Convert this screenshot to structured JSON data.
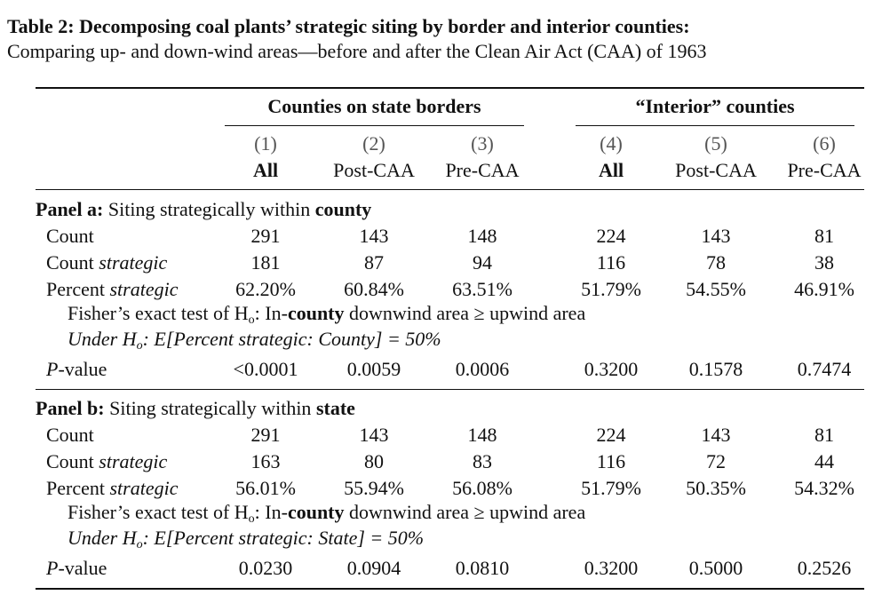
{
  "title": "Table 2: Decomposing coal plants’ strategic siting by border and interior counties:",
  "subtitle": "Comparing up- and down-wind areas—before and after the Clean Air Act (CAA) of 1963",
  "table": {
    "groups": [
      "Counties on state borders",
      "“Interior” counties"
    ],
    "column_numbers": [
      "(1)",
      "(2)",
      "(3)",
      "(4)",
      "(5)",
      "(6)"
    ],
    "column_labels": [
      "All",
      "Post-CAA",
      "Pre-CAA",
      "All",
      "Post-CAA",
      "Pre-CAA"
    ],
    "panels": [
      {
        "heading": [
          "Panel a:",
          " Siting strategically within ",
          "county"
        ],
        "rows": [
          {
            "label": [
              "Count"
            ],
            "values": [
              "291",
              "143",
              "148",
              "224",
              "143",
              "81"
            ]
          },
          {
            "label": [
              "Count ",
              "strategic"
            ],
            "values": [
              "181",
              "87",
              "94",
              "116",
              "78",
              "38"
            ]
          },
          {
            "label": [
              "Percent ",
              "strategic"
            ],
            "values": [
              "62.20%",
              "60.84%",
              "63.51%",
              "51.79%",
              "54.55%",
              "46.91%"
            ]
          }
        ],
        "test_note": [
          "Fisher’s exact test of H",
          "o",
          ": In-",
          "county",
          " downwind area ≥ upwind area"
        ],
        "hypothesis_note": [
          "Under H",
          "o",
          ": E[Percent strategic: County] = 50%"
        ],
        "p_row": {
          "label": [
            "P",
            "-value"
          ],
          "values": [
            "<0.0001",
            "0.0059",
            "0.0006",
            "0.3200",
            "0.1578",
            "0.7474"
          ]
        }
      },
      {
        "heading": [
          "Panel b:",
          " Siting strategically within ",
          "state"
        ],
        "rows": [
          {
            "label": [
              "Count"
            ],
            "values": [
              "291",
              "143",
              "148",
              "224",
              "143",
              "81"
            ]
          },
          {
            "label": [
              "Count ",
              "strategic"
            ],
            "values": [
              "163",
              "80",
              "83",
              "116",
              "72",
              "44"
            ]
          },
          {
            "label": [
              "Percent ",
              "strategic"
            ],
            "values": [
              "56.01%",
              "55.94%",
              "56.08%",
              "51.79%",
              "50.35%",
              "54.32%"
            ]
          }
        ],
        "test_note": [
          "Fisher’s exact test of H",
          "o",
          ": In-",
          "county",
          " downwind area ≥ upwind area"
        ],
        "hypothesis_note": [
          "Under H",
          "o",
          ": E[Percent strategic: State] = 50%"
        ],
        "p_row": {
          "label": [
            "P",
            "-value"
          ],
          "values": [
            "0.0230",
            "0.0904",
            "0.0810",
            "0.3200",
            "0.5000",
            "0.2526"
          ]
        }
      }
    ]
  }
}
